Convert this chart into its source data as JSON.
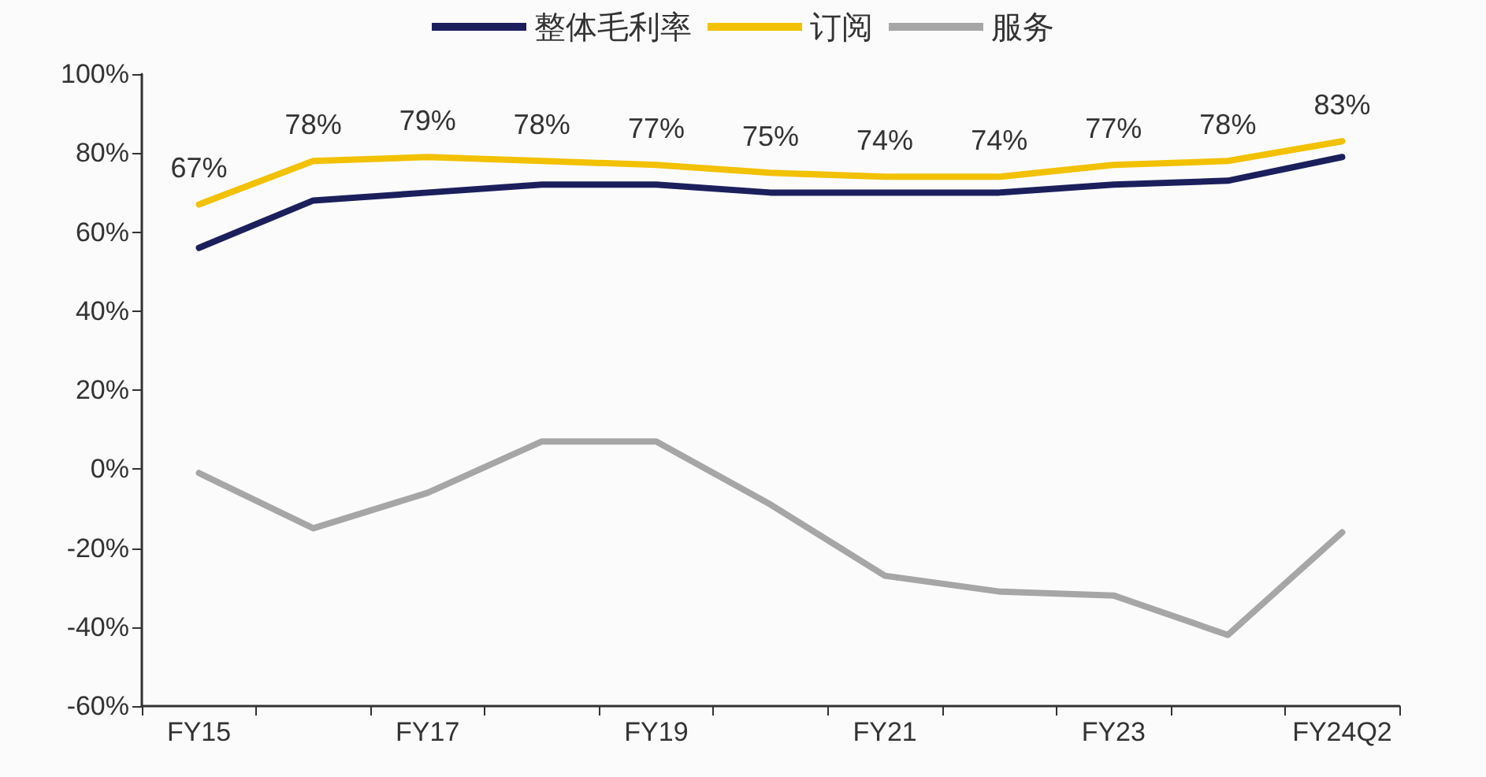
{
  "chart_data": {
    "type": "line",
    "categories": [
      "FY15",
      null,
      "FY17",
      null,
      "FY19",
      null,
      "FY21",
      null,
      "FY23",
      null,
      "FY24Q2"
    ],
    "series": [
      {
        "name": "整体毛利率",
        "color": "#1b1f5c",
        "values": [
          56,
          68,
          70,
          72,
          72,
          70,
          70,
          70,
          72,
          73,
          79
        ]
      },
      {
        "name": "订阅",
        "color": "#f2c100",
        "values": [
          67,
          78,
          79,
          78,
          77,
          75,
          74,
          74,
          77,
          78,
          83
        ],
        "value_labels": [
          "67%",
          "78%",
          "79%",
          "78%",
          "77%",
          "75%",
          "74%",
          "74%",
          "77%",
          "78%",
          "83%"
        ]
      },
      {
        "name": "服务",
        "color": "#a6a6a6",
        "values": [
          -1,
          -15,
          -6,
          7,
          7,
          -9,
          -27,
          -31,
          -32,
          -42,
          -16
        ]
      }
    ],
    "ylim": [
      -60,
      100
    ],
    "yticks": [
      {
        "value": -60,
        "label": "-60%"
      },
      {
        "value": -40,
        "label": "-40%"
      },
      {
        "value": -20,
        "label": "-20%"
      },
      {
        "value": 0,
        "label": "0%"
      },
      {
        "value": 20,
        "label": "20%"
      },
      {
        "value": 40,
        "label": "40%"
      },
      {
        "value": 60,
        "label": "60%"
      },
      {
        "value": 80,
        "label": "80%"
      },
      {
        "value": 100,
        "label": "100%"
      }
    ],
    "grid": false,
    "legend": "top",
    "marker": "none",
    "line_style": "solid"
  }
}
